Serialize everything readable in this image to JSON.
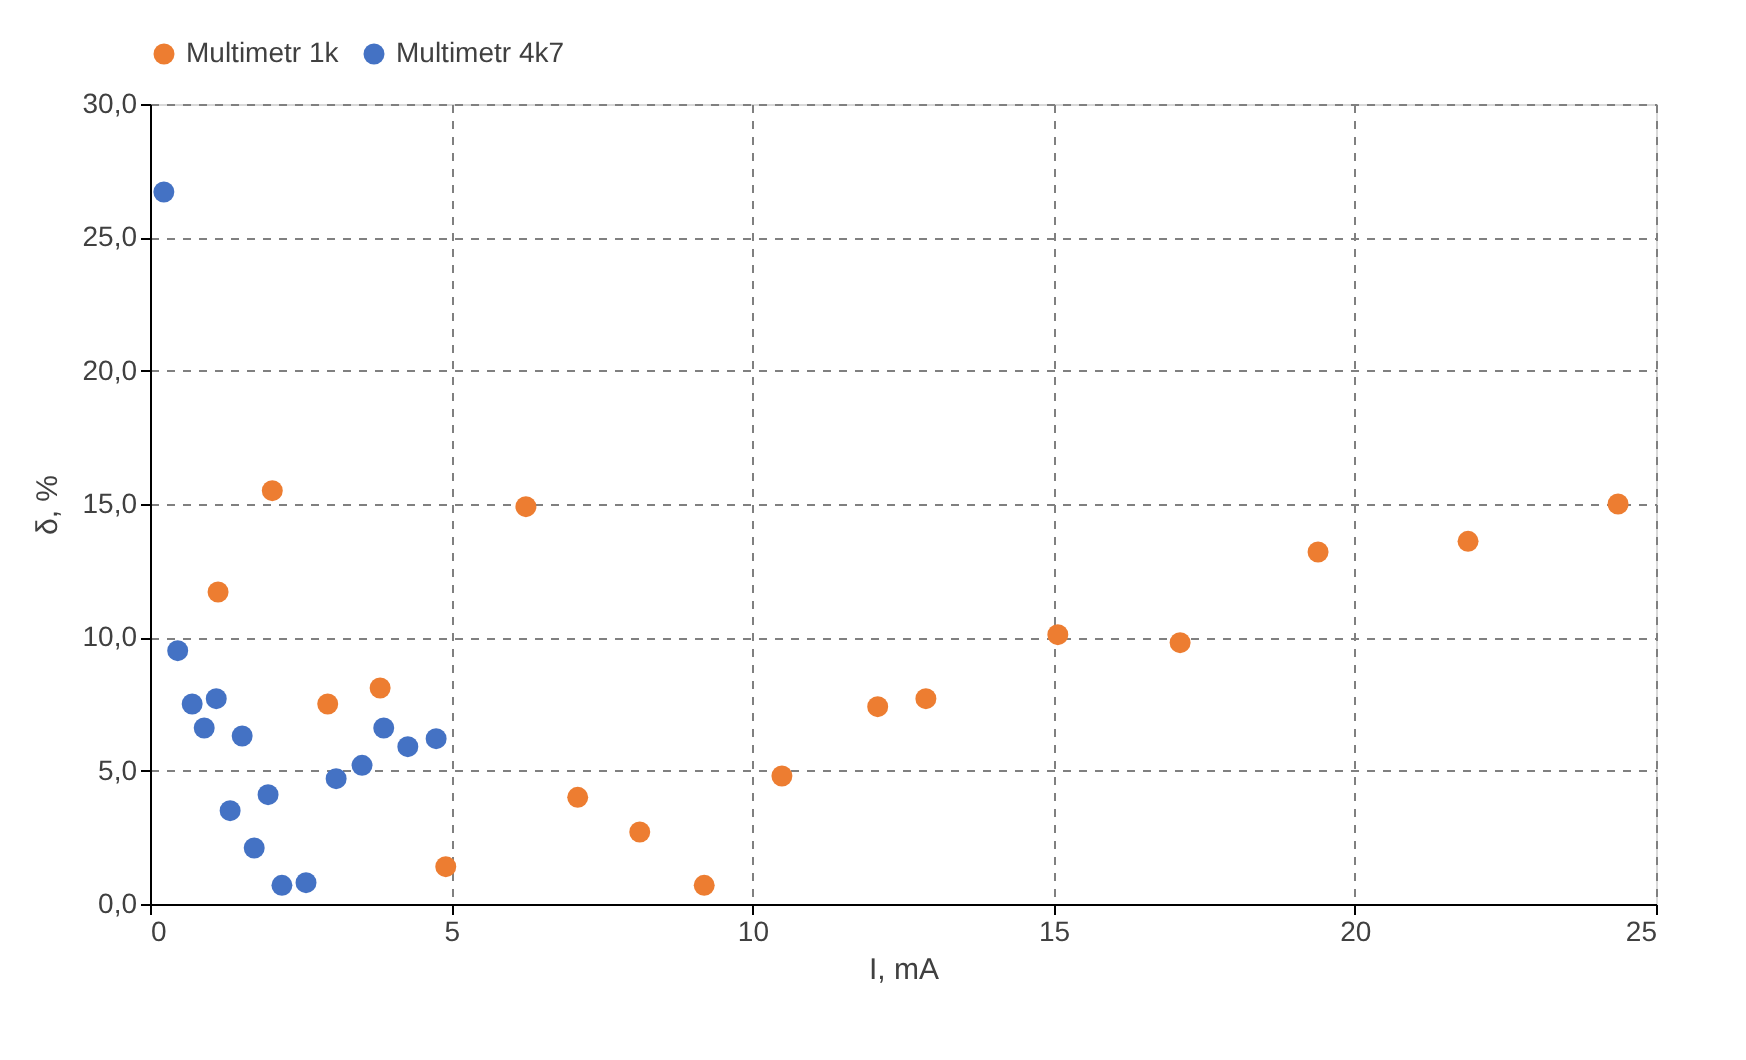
{
  "chart_data": {
    "type": "scatter",
    "xlabel": "I, mA",
    "ylabel": "δ, %",
    "xlim": [
      0,
      25
    ],
    "ylim": [
      0,
      30
    ],
    "xticks": [
      0,
      5,
      10,
      15,
      20,
      25
    ],
    "yticks": [
      {
        "value": 0,
        "label": "0,0"
      },
      {
        "value": 5,
        "label": "5,0"
      },
      {
        "value": 10,
        "label": "10,0"
      },
      {
        "value": 15,
        "label": "15,0"
      },
      {
        "value": 20,
        "label": "20,0"
      },
      {
        "value": 25,
        "label": "25,0"
      },
      {
        "value": 30,
        "label": "30,0"
      }
    ],
    "grid": true,
    "legend": "top",
    "marker": "circle",
    "series": [
      {
        "name": "Multimetr 1k",
        "color": "#ed7d31",
        "x": [
          1.13,
          2.03,
          2.95,
          3.82,
          4.91,
          6.24,
          7.1,
          8.13,
          9.2,
          10.49,
          12.08,
          12.88,
          15.07,
          17.1,
          19.39,
          21.88,
          24.37
        ],
        "values": [
          11.7,
          15.5,
          7.5,
          8.1,
          1.4,
          14.9,
          4.0,
          2.7,
          0.7,
          4.8,
          7.4,
          7.7,
          10.1,
          9.8,
          13.2,
          13.6,
          15.0
        ]
      },
      {
        "name": "Multimetr 4k7",
        "color": "#4472c4",
        "x": [
          0.23,
          0.46,
          0.7,
          0.9,
          1.1,
          1.33,
          1.53,
          1.73,
          1.96,
          2.19,
          2.59,
          3.09,
          3.52,
          3.88,
          4.28,
          4.75
        ],
        "values": [
          26.7,
          9.5,
          7.5,
          6.6,
          7.7,
          3.5,
          6.3,
          2.1,
          4.1,
          0.7,
          0.8,
          4.7,
          5.2,
          6.6,
          5.9,
          6.2
        ]
      }
    ]
  }
}
